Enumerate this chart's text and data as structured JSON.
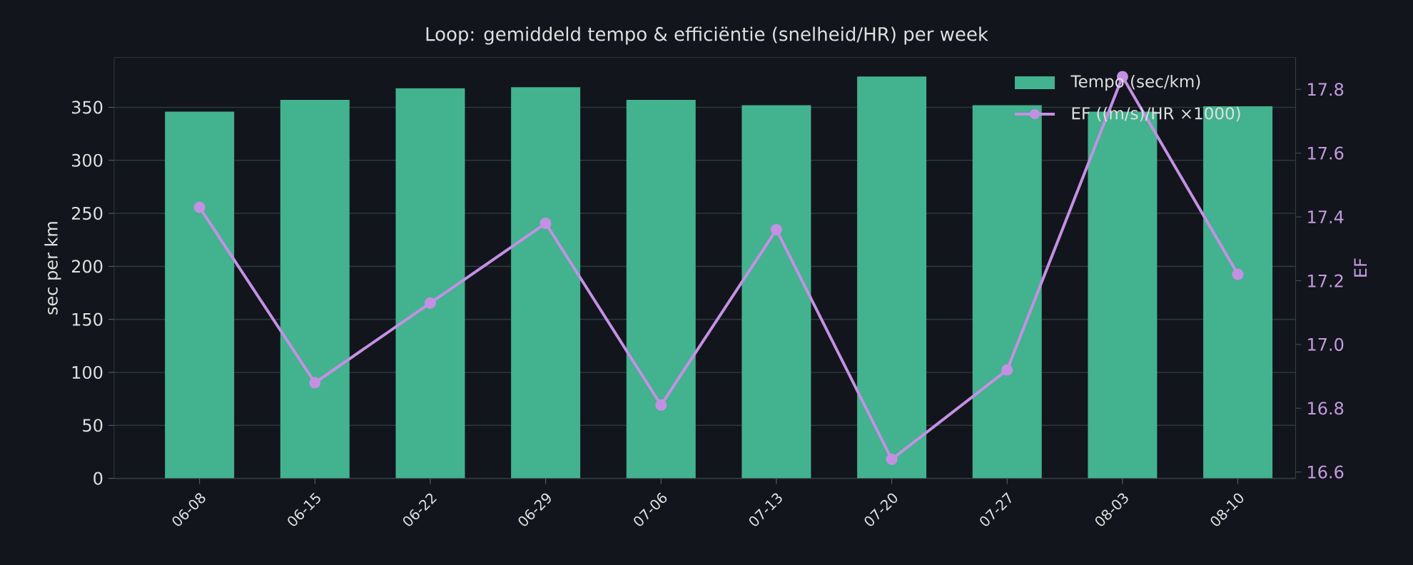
{
  "chart_data": {
    "type": "bar",
    "title": "Loop: gemiddeld tempo & efficiëntie (snelheid/HR) per week",
    "ylabel": "sec per km",
    "y2label": "EF",
    "categories": [
      "06-08",
      "06-15",
      "06-22",
      "06-29",
      "07-06",
      "07-13",
      "07-20",
      "07-27",
      "08-03",
      "08-10"
    ],
    "series": [
      {
        "name": "Tempo (sec/km)",
        "color": "#43b28f",
        "values": [
          346,
          357,
          368,
          369,
          357,
          352,
          379,
          352,
          346,
          351
        ]
      },
      {
        "name": "EF ((m/s)/HR ×1000)",
        "type": "line",
        "axis": "y2",
        "color": "#c490e4",
        "values": [
          17.43,
          16.88,
          17.13,
          17.38,
          16.81,
          17.36,
          16.64,
          16.92,
          17.84,
          17.22
        ]
      }
    ],
    "ylim": [
      0,
      397
    ],
    "yticks": [
      0,
      50,
      100,
      150,
      200,
      250,
      300,
      350
    ],
    "y2lim": [
      16.58,
      17.9
    ],
    "y2ticks": [
      16.6,
      16.8,
      {
        "value": 17,
        "label": "17.0"
      },
      17.2,
      17.4,
      17.6,
      17.8
    ],
    "grid": "y",
    "legend": "top right",
    "marker": "circle",
    "line_style": "solid"
  }
}
